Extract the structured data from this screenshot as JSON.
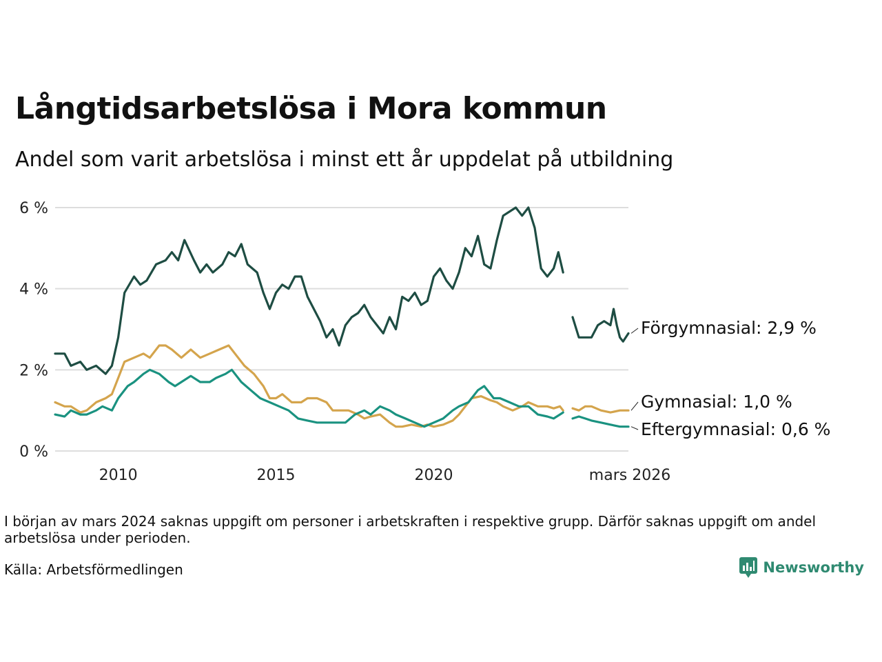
{
  "title": "Långtidsarbetslösa i Mora kommun",
  "subtitle": "Andel som varit arbetslösa i minst ett år uppdelat på utbildning",
  "note": "I början av mars 2024 saknas uppgift om personer i arbetskraften i respektive grupp. Därför saknas uppgift om andel arbetslösa under perioden.",
  "source": "Källa: Arbetsförmedlingen",
  "brand": {
    "name": "Newsworthy",
    "icon": "newsworthy-logo-icon",
    "color": "#2f8a71"
  },
  "chart_data": {
    "type": "line",
    "title": "Långtidsarbetslösa i Mora kommun",
    "xlabel": "",
    "ylabel": "",
    "xlim": [
      2008.0,
      2026.17
    ],
    "ylim": [
      0,
      6
    ],
    "y_ticks": [
      0,
      2,
      4,
      6
    ],
    "y_tick_labels": [
      "0 %",
      "2 %",
      "4 %",
      "6 %"
    ],
    "x_ticks": [
      2010,
      2015,
      2020,
      2026.17
    ],
    "x_tick_labels": [
      "2010",
      "2015",
      "2020",
      "mars 2026"
    ],
    "grid": true,
    "gap": [
      2023.5,
      2024.25
    ],
    "series": [
      {
        "name": "Förgymnasial",
        "label": "Förgymnasial: 2,9 %",
        "color": "#1e4d43",
        "points": [
          [
            2008.0,
            2.4
          ],
          [
            2008.3,
            2.4
          ],
          [
            2008.5,
            2.1
          ],
          [
            2008.8,
            2.2
          ],
          [
            2009.0,
            2.0
          ],
          [
            2009.3,
            2.1
          ],
          [
            2009.6,
            1.9
          ],
          [
            2009.8,
            2.1
          ],
          [
            2010.0,
            2.8
          ],
          [
            2010.2,
            3.9
          ],
          [
            2010.5,
            4.3
          ],
          [
            2010.7,
            4.1
          ],
          [
            2010.9,
            4.2
          ],
          [
            2011.2,
            4.6
          ],
          [
            2011.5,
            4.7
          ],
          [
            2011.7,
            4.9
          ],
          [
            2011.9,
            4.7
          ],
          [
            2012.1,
            5.2
          ],
          [
            2012.4,
            4.7
          ],
          [
            2012.6,
            4.4
          ],
          [
            2012.8,
            4.6
          ],
          [
            2013.0,
            4.4
          ],
          [
            2013.3,
            4.6
          ],
          [
            2013.5,
            4.9
          ],
          [
            2013.7,
            4.8
          ],
          [
            2013.9,
            5.1
          ],
          [
            2014.1,
            4.6
          ],
          [
            2014.4,
            4.4
          ],
          [
            2014.6,
            3.9
          ],
          [
            2014.8,
            3.5
          ],
          [
            2015.0,
            3.9
          ],
          [
            2015.2,
            4.1
          ],
          [
            2015.4,
            4.0
          ],
          [
            2015.6,
            4.3
          ],
          [
            2015.8,
            4.3
          ],
          [
            2016.0,
            3.8
          ],
          [
            2016.2,
            3.5
          ],
          [
            2016.4,
            3.2
          ],
          [
            2016.6,
            2.8
          ],
          [
            2016.8,
            3.0
          ],
          [
            2017.0,
            2.6
          ],
          [
            2017.2,
            3.1
          ],
          [
            2017.4,
            3.3
          ],
          [
            2017.6,
            3.4
          ],
          [
            2017.8,
            3.6
          ],
          [
            2018.0,
            3.3
          ],
          [
            2018.2,
            3.1
          ],
          [
            2018.4,
            2.9
          ],
          [
            2018.6,
            3.3
          ],
          [
            2018.8,
            3.0
          ],
          [
            2019.0,
            3.8
          ],
          [
            2019.2,
            3.7
          ],
          [
            2019.4,
            3.9
          ],
          [
            2019.6,
            3.6
          ],
          [
            2019.8,
            3.7
          ],
          [
            2020.0,
            4.3
          ],
          [
            2020.2,
            4.5
          ],
          [
            2020.4,
            4.2
          ],
          [
            2020.6,
            4.0
          ],
          [
            2020.8,
            4.4
          ],
          [
            2021.0,
            5.0
          ],
          [
            2021.2,
            4.8
          ],
          [
            2021.4,
            5.3
          ],
          [
            2021.6,
            4.6
          ],
          [
            2021.8,
            4.5
          ],
          [
            2022.0,
            5.2
          ],
          [
            2022.2,
            5.8
          ],
          [
            2022.4,
            5.9
          ],
          [
            2022.6,
            6.0
          ],
          [
            2022.8,
            5.8
          ],
          [
            2023.0,
            6.0
          ],
          [
            2023.2,
            5.5
          ],
          [
            2023.4,
            4.5
          ],
          [
            2023.6,
            4.3
          ],
          [
            2023.8,
            4.5
          ],
          [
            2023.95,
            4.9
          ],
          [
            2024.1,
            4.4
          ],
          [
            2024.4,
            3.3
          ],
          [
            2024.6,
            2.8
          ],
          [
            2024.8,
            2.8
          ],
          [
            2025.0,
            2.8
          ],
          [
            2025.2,
            3.1
          ],
          [
            2025.4,
            3.2
          ],
          [
            2025.6,
            3.1
          ],
          [
            2025.7,
            3.5
          ],
          [
            2025.8,
            3.1
          ],
          [
            2025.9,
            2.8
          ],
          [
            2026.0,
            2.7
          ],
          [
            2026.17,
            2.9
          ]
        ]
      },
      {
        "name": "Gymnasial",
        "label": "Gymnasial: 1,0 %",
        "color": "#d4a44c",
        "points": [
          [
            2008.0,
            1.2
          ],
          [
            2008.3,
            1.1
          ],
          [
            2008.5,
            1.1
          ],
          [
            2008.8,
            0.95
          ],
          [
            2009.0,
            1.0
          ],
          [
            2009.3,
            1.2
          ],
          [
            2009.6,
            1.3
          ],
          [
            2009.8,
            1.4
          ],
          [
            2010.0,
            1.8
          ],
          [
            2010.2,
            2.2
          ],
          [
            2010.5,
            2.3
          ],
          [
            2010.8,
            2.4
          ],
          [
            2011.0,
            2.3
          ],
          [
            2011.3,
            2.6
          ],
          [
            2011.5,
            2.6
          ],
          [
            2011.7,
            2.5
          ],
          [
            2012.0,
            2.3
          ],
          [
            2012.3,
            2.5
          ],
          [
            2012.6,
            2.3
          ],
          [
            2012.9,
            2.4
          ],
          [
            2013.2,
            2.5
          ],
          [
            2013.5,
            2.6
          ],
          [
            2013.7,
            2.4
          ],
          [
            2014.0,
            2.1
          ],
          [
            2014.3,
            1.9
          ],
          [
            2014.6,
            1.6
          ],
          [
            2014.8,
            1.3
          ],
          [
            2015.0,
            1.3
          ],
          [
            2015.2,
            1.4
          ],
          [
            2015.5,
            1.2
          ],
          [
            2015.8,
            1.2
          ],
          [
            2016.0,
            1.3
          ],
          [
            2016.3,
            1.3
          ],
          [
            2016.6,
            1.2
          ],
          [
            2016.8,
            1.0
          ],
          [
            2017.0,
            1.0
          ],
          [
            2017.3,
            1.0
          ],
          [
            2017.6,
            0.9
          ],
          [
            2017.8,
            0.8
          ],
          [
            2018.0,
            0.85
          ],
          [
            2018.3,
            0.9
          ],
          [
            2018.6,
            0.7
          ],
          [
            2018.8,
            0.6
          ],
          [
            2019.0,
            0.6
          ],
          [
            2019.3,
            0.65
          ],
          [
            2019.6,
            0.6
          ],
          [
            2019.8,
            0.65
          ],
          [
            2020.0,
            0.6
          ],
          [
            2020.3,
            0.65
          ],
          [
            2020.6,
            0.75
          ],
          [
            2020.8,
            0.9
          ],
          [
            2021.0,
            1.1
          ],
          [
            2021.2,
            1.3
          ],
          [
            2021.5,
            1.35
          ],
          [
            2021.8,
            1.25
          ],
          [
            2022.0,
            1.2
          ],
          [
            2022.2,
            1.1
          ],
          [
            2022.5,
            1.0
          ],
          [
            2022.8,
            1.1
          ],
          [
            2023.0,
            1.2
          ],
          [
            2023.3,
            1.1
          ],
          [
            2023.6,
            1.1
          ],
          [
            2023.8,
            1.05
          ],
          [
            2024.0,
            1.1
          ],
          [
            2024.1,
            1.0
          ],
          [
            2024.4,
            1.05
          ],
          [
            2024.6,
            1.0
          ],
          [
            2024.8,
            1.1
          ],
          [
            2025.0,
            1.1
          ],
          [
            2025.3,
            1.0
          ],
          [
            2025.6,
            0.95
          ],
          [
            2025.9,
            1.0
          ],
          [
            2026.17,
            1.0
          ]
        ]
      },
      {
        "name": "Eftergymnasial",
        "label": "Eftergymnasial: 0,6 %",
        "color": "#1a9280",
        "points": [
          [
            2008.0,
            0.9
          ],
          [
            2008.3,
            0.85
          ],
          [
            2008.5,
            1.0
          ],
          [
            2008.8,
            0.9
          ],
          [
            2009.0,
            0.9
          ],
          [
            2009.3,
            1.0
          ],
          [
            2009.5,
            1.1
          ],
          [
            2009.8,
            1.0
          ],
          [
            2010.0,
            1.3
          ],
          [
            2010.3,
            1.6
          ],
          [
            2010.5,
            1.7
          ],
          [
            2010.8,
            1.9
          ],
          [
            2011.0,
            2.0
          ],
          [
            2011.3,
            1.9
          ],
          [
            2011.6,
            1.7
          ],
          [
            2011.8,
            1.6
          ],
          [
            2012.0,
            1.7
          ],
          [
            2012.3,
            1.85
          ],
          [
            2012.6,
            1.7
          ],
          [
            2012.9,
            1.7
          ],
          [
            2013.1,
            1.8
          ],
          [
            2013.4,
            1.9
          ],
          [
            2013.6,
            2.0
          ],
          [
            2013.9,
            1.7
          ],
          [
            2014.2,
            1.5
          ],
          [
            2014.5,
            1.3
          ],
          [
            2014.8,
            1.2
          ],
          [
            2015.1,
            1.1
          ],
          [
            2015.4,
            1.0
          ],
          [
            2015.7,
            0.8
          ],
          [
            2016.0,
            0.75
          ],
          [
            2016.3,
            0.7
          ],
          [
            2016.6,
            0.7
          ],
          [
            2016.9,
            0.7
          ],
          [
            2017.2,
            0.7
          ],
          [
            2017.5,
            0.9
          ],
          [
            2017.8,
            1.0
          ],
          [
            2018.0,
            0.9
          ],
          [
            2018.3,
            1.1
          ],
          [
            2018.6,
            1.0
          ],
          [
            2018.8,
            0.9
          ],
          [
            2019.1,
            0.8
          ],
          [
            2019.4,
            0.7
          ],
          [
            2019.7,
            0.6
          ],
          [
            2020.0,
            0.7
          ],
          [
            2020.3,
            0.8
          ],
          [
            2020.6,
            1.0
          ],
          [
            2020.8,
            1.1
          ],
          [
            2021.1,
            1.2
          ],
          [
            2021.4,
            1.5
          ],
          [
            2021.6,
            1.6
          ],
          [
            2021.9,
            1.3
          ],
          [
            2022.1,
            1.3
          ],
          [
            2022.4,
            1.2
          ],
          [
            2022.7,
            1.1
          ],
          [
            2023.0,
            1.1
          ],
          [
            2023.3,
            0.9
          ],
          [
            2023.6,
            0.85
          ],
          [
            2023.8,
            0.8
          ],
          [
            2024.0,
            0.9
          ],
          [
            2024.1,
            0.95
          ],
          [
            2024.4,
            0.8
          ],
          [
            2024.6,
            0.85
          ],
          [
            2024.8,
            0.8
          ],
          [
            2025.0,
            0.75
          ],
          [
            2025.3,
            0.7
          ],
          [
            2025.6,
            0.65
          ],
          [
            2025.9,
            0.6
          ],
          [
            2026.17,
            0.6
          ]
        ]
      }
    ]
  }
}
